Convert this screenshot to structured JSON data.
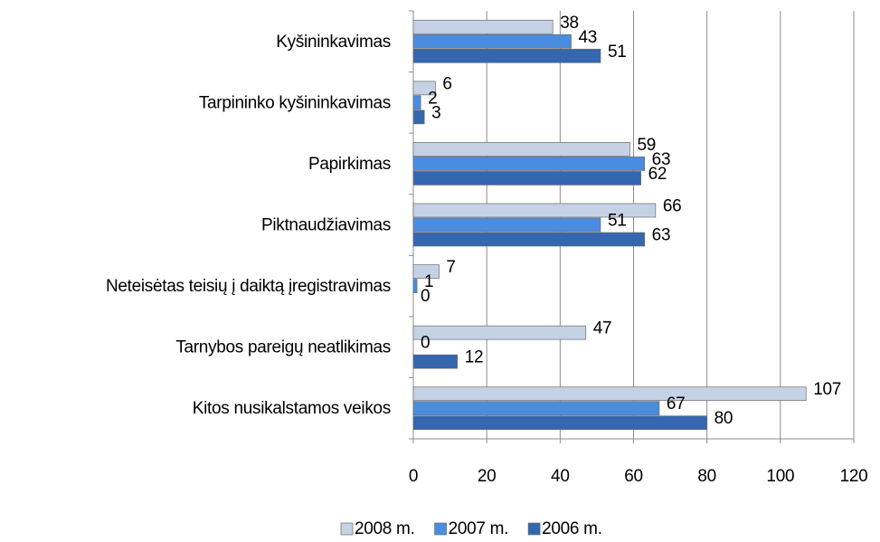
{
  "chart_data": {
    "type": "barh",
    "categories": [
      "Kyšininkavimas",
      "Tarpininko kyšininkavimas",
      "Papirkimas",
      "Piktnaudžiavimas",
      "Neteisėtas teisių į daiktą įregistravimas",
      "Tarnybos pareigų neatlikimas",
      "Kitos nusikalstamos veikos"
    ],
    "series": [
      {
        "name": "2008 m.",
        "color": "#c5d2e6",
        "values": [
          38,
          6,
          59,
          66,
          7,
          47,
          107
        ]
      },
      {
        "name": "2007 m.",
        "color": "#4a8de0",
        "values": [
          43,
          2,
          63,
          51,
          1,
          0,
          67
        ]
      },
      {
        "name": "2006 m.",
        "color": "#3566b0",
        "values": [
          51,
          3,
          62,
          63,
          0,
          12,
          80
        ]
      }
    ],
    "xlim": [
      0,
      120
    ],
    "xticks": [
      0,
      20,
      40,
      60,
      80,
      100,
      120
    ],
    "grid": true,
    "legend": "bottom"
  }
}
